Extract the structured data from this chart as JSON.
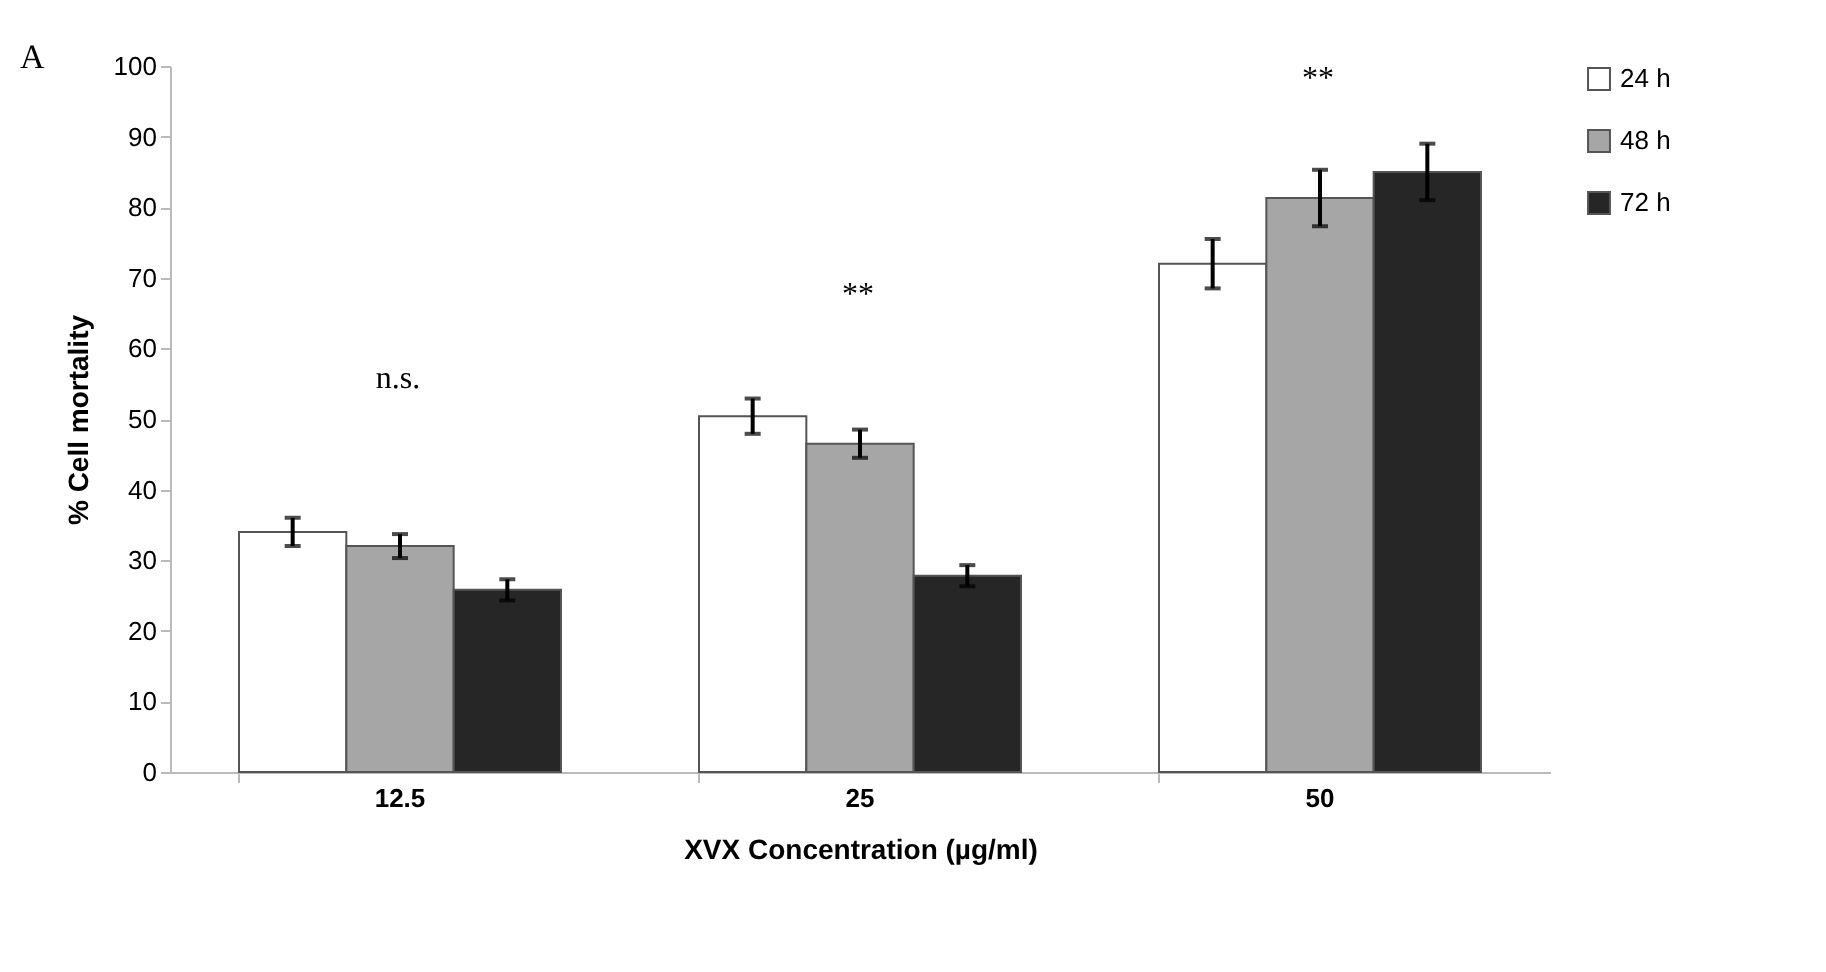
{
  "chart_data": {
    "type": "bar",
    "xlabel": "XVX Concentration (µg/ml)",
    "ylabel": "% Cell mortality",
    "categories": [
      "12.5",
      "25",
      "50"
    ],
    "series": [
      {
        "name": "24 h",
        "color": "#ffffff",
        "values": [
          34.0,
          50.4,
          72.0
        ],
        "errors": [
          2,
          2.5,
          3.5
        ]
      },
      {
        "name": "48 h",
        "color": "#a6a6a6",
        "values": [
          32.0,
          46.5,
          81.3
        ],
        "errors": [
          1.7,
          2,
          4
        ]
      },
      {
        "name": "72 h",
        "color": "#262626",
        "values": [
          25.8,
          27.8,
          85.0
        ],
        "errors": [
          1.5,
          1.5,
          4
        ]
      }
    ],
    "ylim": [
      0,
      100
    ],
    "yticks": [
      0,
      10,
      20,
      30,
      40,
      50,
      60,
      70,
      80,
      90,
      100
    ],
    "grid": false,
    "legend": "right",
    "annotations": [
      "A",
      "n.s.",
      "**",
      "**"
    ]
  }
}
